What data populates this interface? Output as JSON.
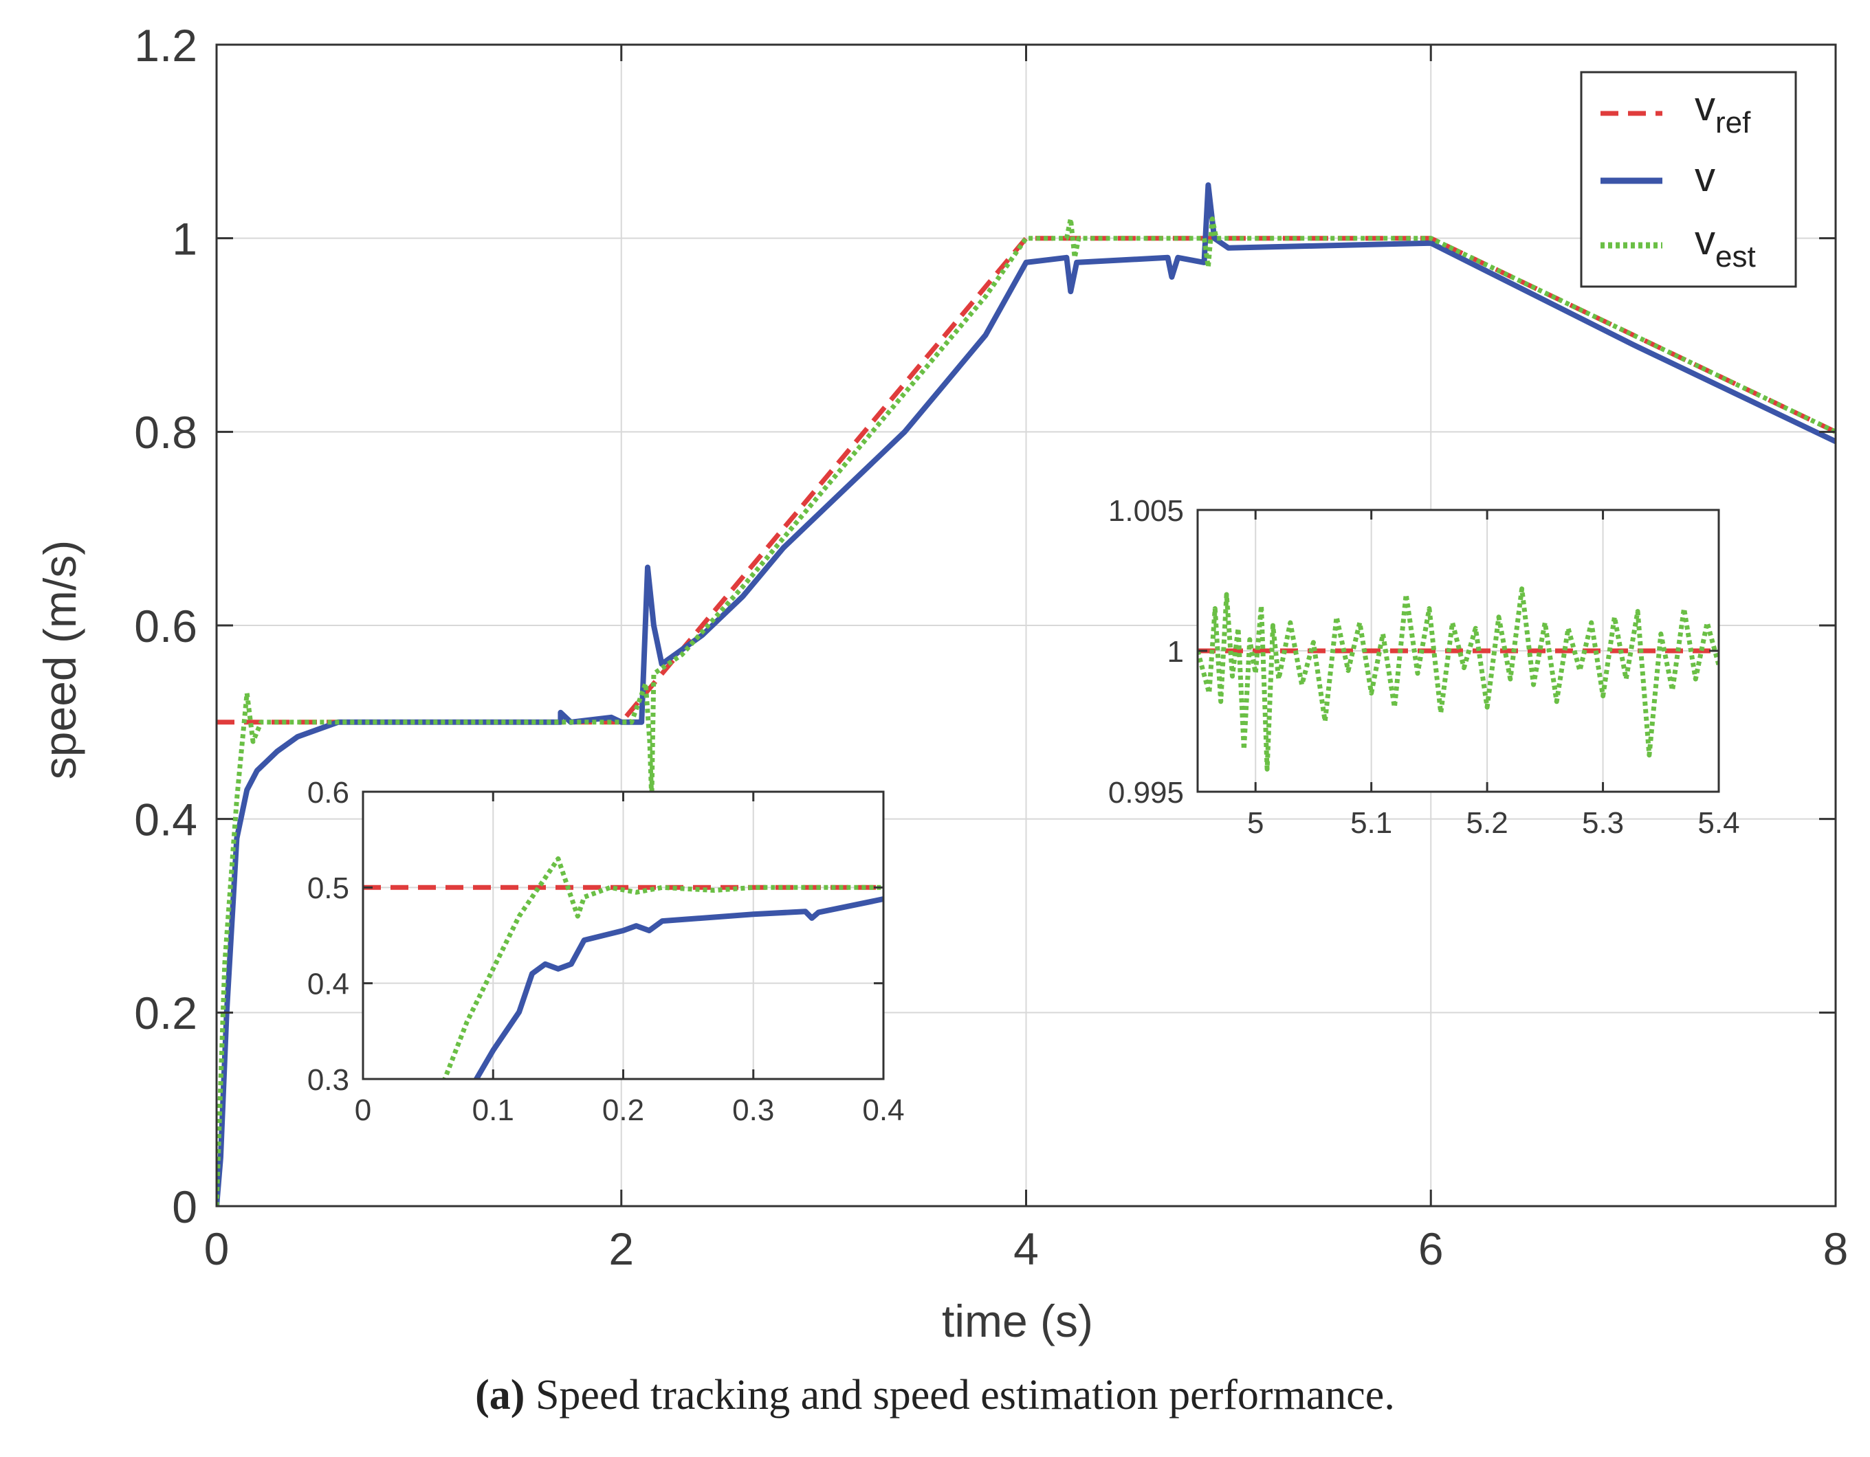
{
  "caption": {
    "label": "(a)",
    "text": "Speed tracking and speed estimation performance."
  },
  "colors": {
    "v_ref": "#e03c3c",
    "v": "#3b55a8",
    "v_est": "#6abf45",
    "grid": "#d8d8d8",
    "axis": "#333333"
  },
  "chart_data": [
    {
      "id": "main",
      "type": "line",
      "title": "",
      "xlabel": "time (s)",
      "ylabel": "speed (m/s)",
      "xlim": [
        0,
        8
      ],
      "ylim": [
        0,
        1.2
      ],
      "xticks": [
        0,
        2,
        4,
        6,
        8
      ],
      "xtick_labels": [
        "0",
        "2",
        "4",
        "6",
        "8"
      ],
      "yticks": [
        0,
        0.2,
        0.4,
        0.6,
        0.8,
        1.0,
        1.2
      ],
      "ytick_labels": [
        "0",
        "0.2",
        "0.4",
        "0.6",
        "0.8",
        "1",
        "1.2"
      ],
      "grid": true,
      "legend_position": "top-right",
      "legend": [
        {
          "key": "v_ref",
          "base": "v",
          "sub": "ref",
          "style": "dashed"
        },
        {
          "key": "v",
          "base": "v",
          "sub": "",
          "style": "solid"
        },
        {
          "key": "v_est",
          "base": "v",
          "sub": "est",
          "style": "dotted"
        }
      ],
      "series": [
        {
          "name": "v_ref",
          "points": [
            [
              0,
              0.5
            ],
            [
              2,
              0.5
            ],
            [
              4,
              1.0
            ],
            [
              6,
              1.0
            ],
            [
              8,
              0.8
            ]
          ]
        },
        {
          "name": "v",
          "points": [
            [
              0,
              0
            ],
            [
              0.02,
              0.05
            ],
            [
              0.05,
              0.2
            ],
            [
              0.1,
              0.38
            ],
            [
              0.15,
              0.43
            ],
            [
              0.2,
              0.45
            ],
            [
              0.3,
              0.47
            ],
            [
              0.4,
              0.485
            ],
            [
              0.6,
              0.5
            ],
            [
              1.7,
              0.5
            ],
            [
              1.7,
              0.51
            ],
            [
              1.75,
              0.5
            ],
            [
              1.95,
              0.505
            ],
            [
              2.0,
              0.5
            ],
            [
              2.1,
              0.5
            ],
            [
              2.13,
              0.66
            ],
            [
              2.16,
              0.6
            ],
            [
              2.2,
              0.56
            ],
            [
              2.4,
              0.59
            ],
            [
              2.6,
              0.63
            ],
            [
              2.8,
              0.68
            ],
            [
              3.0,
              0.72
            ],
            [
              3.2,
              0.76
            ],
            [
              3.4,
              0.8
            ],
            [
              3.6,
              0.85
            ],
            [
              3.8,
              0.9
            ],
            [
              4.0,
              0.975
            ],
            [
              4.2,
              0.98
            ],
            [
              4.22,
              0.945
            ],
            [
              4.25,
              0.975
            ],
            [
              4.7,
              0.98
            ],
            [
              4.72,
              0.96
            ],
            [
              4.75,
              0.98
            ],
            [
              4.88,
              0.975
            ],
            [
              4.9,
              1.055
            ],
            [
              4.93,
              1.0
            ],
            [
              5.0,
              0.99
            ],
            [
              6.0,
              0.995
            ],
            [
              7.0,
              0.89
            ],
            [
              8.0,
              0.79
            ]
          ]
        },
        {
          "name": "v_est",
          "points": [
            [
              0,
              0
            ],
            [
              0.04,
              0.25
            ],
            [
              0.1,
              0.42
            ],
            [
              0.15,
              0.53
            ],
            [
              0.18,
              0.48
            ],
            [
              0.22,
              0.5
            ],
            [
              1.95,
              0.5
            ],
            [
              2.05,
              0.5
            ],
            [
              2.12,
              0.54
            ],
            [
              2.14,
              0.48
            ],
            [
              2.15,
              0.42
            ],
            [
              2.16,
              0.55
            ],
            [
              2.3,
              0.57
            ],
            [
              2.6,
              0.64
            ],
            [
              3.0,
              0.74
            ],
            [
              3.4,
              0.84
            ],
            [
              3.8,
              0.94
            ],
            [
              4.0,
              1.0
            ],
            [
              4.2,
              1.0
            ],
            [
              4.22,
              1.02
            ],
            [
              4.24,
              0.98
            ],
            [
              4.26,
              1.0
            ],
            [
              4.88,
              1.0
            ],
            [
              4.9,
              0.97
            ],
            [
              4.92,
              1.02
            ],
            [
              4.94,
              1.0
            ],
            [
              6.0,
              1.0
            ],
            [
              7.0,
              0.9
            ],
            [
              8.0,
              0.8
            ]
          ]
        }
      ]
    },
    {
      "id": "inset_left",
      "type": "line",
      "xlim": [
        0,
        0.4
      ],
      "ylim": [
        0.3,
        0.6
      ],
      "xticks": [
        0,
        0.1,
        0.2,
        0.3,
        0.4
      ],
      "xtick_labels": [
        "0",
        "0.1",
        "0.2",
        "0.3",
        "0.4"
      ],
      "yticks": [
        0.3,
        0.4,
        0.5,
        0.6
      ],
      "ytick_labels": [
        "0.3",
        "0.4",
        "0.5",
        "0.6"
      ],
      "grid": true,
      "series": [
        {
          "name": "v_ref",
          "points": [
            [
              0,
              0.5
            ],
            [
              0.4,
              0.5
            ]
          ]
        },
        {
          "name": "v",
          "points": [
            [
              0.085,
              0.295
            ],
            [
              0.1,
              0.33
            ],
            [
              0.12,
              0.37
            ],
            [
              0.13,
              0.41
            ],
            [
              0.14,
              0.42
            ],
            [
              0.15,
              0.415
            ],
            [
              0.16,
              0.42
            ],
            [
              0.17,
              0.445
            ],
            [
              0.2,
              0.455
            ],
            [
              0.21,
              0.46
            ],
            [
              0.22,
              0.455
            ],
            [
              0.23,
              0.465
            ],
            [
              0.3,
              0.472
            ],
            [
              0.34,
              0.475
            ],
            [
              0.345,
              0.468
            ],
            [
              0.35,
              0.474
            ],
            [
              0.4,
              0.488
            ]
          ]
        },
        {
          "name": "v_est",
          "points": [
            [
              0.06,
              0.29
            ],
            [
              0.08,
              0.36
            ],
            [
              0.12,
              0.47
            ],
            [
              0.15,
              0.53
            ],
            [
              0.16,
              0.49
            ],
            [
              0.165,
              0.47
            ],
            [
              0.17,
              0.49
            ],
            [
              0.19,
              0.5
            ],
            [
              0.21,
              0.495
            ],
            [
              0.23,
              0.5
            ],
            [
              0.27,
              0.497
            ],
            [
              0.3,
              0.5
            ],
            [
              0.34,
              0.5
            ],
            [
              0.4,
              0.5
            ]
          ]
        }
      ]
    },
    {
      "id": "inset_right",
      "type": "line",
      "xlim": [
        4.95,
        5.4
      ],
      "ylim": [
        0.995,
        1.005
      ],
      "xticks": [
        5.0,
        5.1,
        5.2,
        5.3,
        5.4
      ],
      "xtick_labels": [
        "5",
        "5.1",
        "5.2",
        "5.3",
        "5.4"
      ],
      "yticks": [
        0.995,
        1.0,
        1.005
      ],
      "ytick_labels": [
        "0.995",
        "1",
        "1.005"
      ],
      "grid": true,
      "series": [
        {
          "name": "v_ref",
          "points": [
            [
              4.95,
              1.0
            ],
            [
              5.4,
              1.0
            ]
          ]
        },
        {
          "name": "v_est",
          "points": [
            [
              4.95,
              1.0
            ],
            [
              4.96,
              0.9985
            ],
            [
              4.965,
              1.0015
            ],
            [
              4.97,
              0.9982
            ],
            [
              4.975,
              1.002
            ],
            [
              4.98,
              0.9991
            ],
            [
              4.985,
              1.0008
            ],
            [
              4.99,
              0.9965
            ],
            [
              4.995,
              1.0004
            ],
            [
              5.0,
              0.9992
            ],
            [
              5.005,
              1.0016
            ],
            [
              5.01,
              0.9958
            ],
            [
              5.015,
              1.0009
            ],
            [
              5.02,
              0.999
            ],
            [
              5.03,
              1.001
            ],
            [
              5.04,
              0.9988
            ],
            [
              5.05,
              1.0003
            ],
            [
              5.06,
              0.9975
            ],
            [
              5.07,
              1.0012
            ],
            [
              5.08,
              0.9993
            ],
            [
              5.09,
              1.001
            ],
            [
              5.1,
              0.9985
            ],
            [
              5.11,
              1.0006
            ],
            [
              5.12,
              0.998
            ],
            [
              5.13,
              1.002
            ],
            [
              5.14,
              0.9992
            ],
            [
              5.15,
              1.0015
            ],
            [
              5.16,
              0.9978
            ],
            [
              5.17,
              1.001
            ],
            [
              5.18,
              0.9994
            ],
            [
              5.19,
              1.0008
            ],
            [
              5.2,
              0.998
            ],
            [
              5.21,
              1.0012
            ],
            [
              5.22,
              0.999
            ],
            [
              5.23,
              1.0022
            ],
            [
              5.24,
              0.9988
            ],
            [
              5.25,
              1.001
            ],
            [
              5.26,
              0.9982
            ],
            [
              5.27,
              1.0008
            ],
            [
              5.28,
              0.9993
            ],
            [
              5.29,
              1.001
            ],
            [
              5.3,
              0.9984
            ],
            [
              5.31,
              1.0012
            ],
            [
              5.32,
              0.999
            ],
            [
              5.33,
              1.0014
            ],
            [
              5.34,
              0.9963
            ],
            [
              5.35,
              1.0006
            ],
            [
              5.36,
              0.9986
            ],
            [
              5.37,
              1.0015
            ],
            [
              5.38,
              0.999
            ],
            [
              5.39,
              1.001
            ],
            [
              5.4,
              0.9995
            ]
          ]
        }
      ]
    }
  ]
}
